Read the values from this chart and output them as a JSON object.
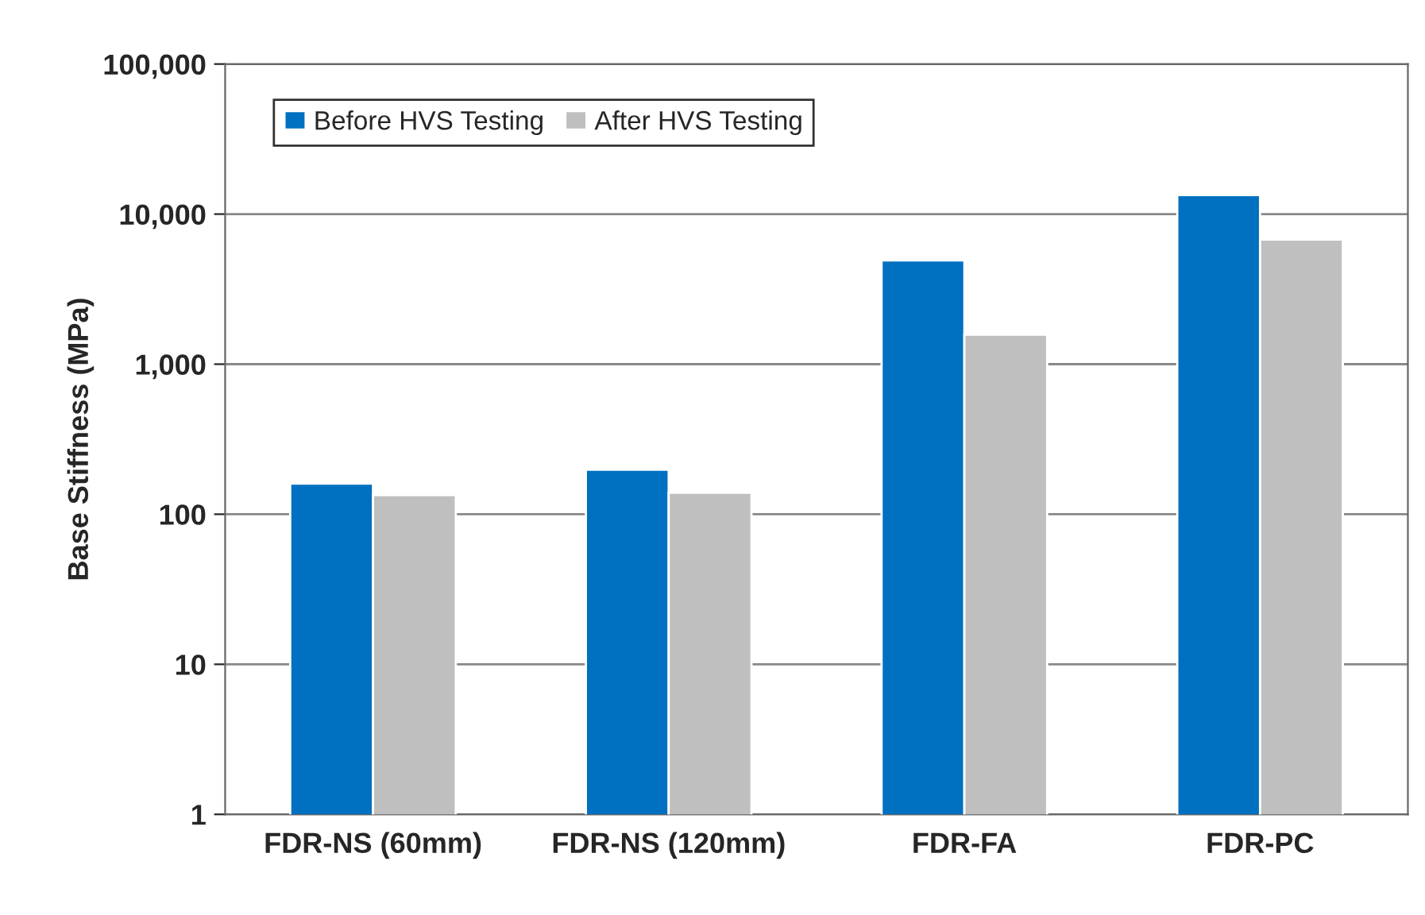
{
  "chart_data": {
    "type": "bar",
    "ylabel": "Base Stiffness (MPa)",
    "categories": [
      "FDR-NS (60mm)",
      "FDR-NS (120mm)",
      "FDR-FA",
      "FDR-PC"
    ],
    "series": [
      {
        "name": "Before HVS Testing",
        "color": "#0070c0",
        "values": [
          160,
          198,
          4920,
          13400
        ]
      },
      {
        "name": "After HVS Testing",
        "color": "#bfbfbf",
        "values": [
          134,
          139,
          1570,
          6770
        ]
      }
    ],
    "log": true,
    "ylim": [
      1,
      100000
    ],
    "yticks": [
      {
        "value": 1,
        "label": "1"
      },
      {
        "value": 10,
        "label": "10"
      },
      {
        "value": 100,
        "label": "100"
      },
      {
        "value": 1000,
        "label": "1,000"
      },
      {
        "value": 10000,
        "label": "10,000"
      },
      {
        "value": 100000,
        "label": "100,000"
      }
    ],
    "grid": "y",
    "legend": "top left"
  }
}
